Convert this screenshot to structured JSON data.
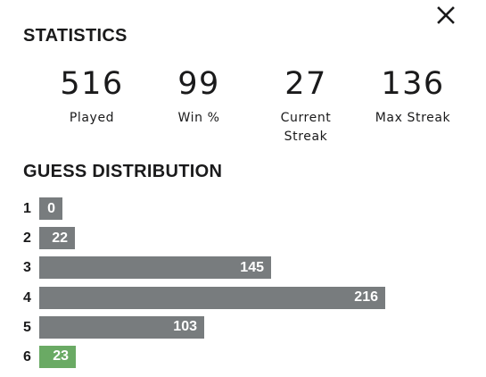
{
  "title": "STATISTICS",
  "stats": [
    {
      "value": "516",
      "label": "Played"
    },
    {
      "value": "99",
      "label": "Win %"
    },
    {
      "value": "27",
      "label": "Current\nStreak"
    },
    {
      "value": "136",
      "label": "Max Streak"
    }
  ],
  "distribution_title": "GUESS DISTRIBUTION",
  "distribution": [
    {
      "guess": "1",
      "count": "0"
    },
    {
      "guess": "2",
      "count": "22"
    },
    {
      "guess": "3",
      "count": "145"
    },
    {
      "guess": "4",
      "count": "216"
    },
    {
      "guess": "5",
      "count": "103"
    },
    {
      "guess": "6",
      "count": "23"
    }
  ],
  "highlighted_guess": "6",
  "colors": {
    "bar": "#787c7e",
    "highlight": "#6aaa64",
    "text": "#1a1a1b"
  },
  "icons": {
    "close": "close-icon"
  }
}
